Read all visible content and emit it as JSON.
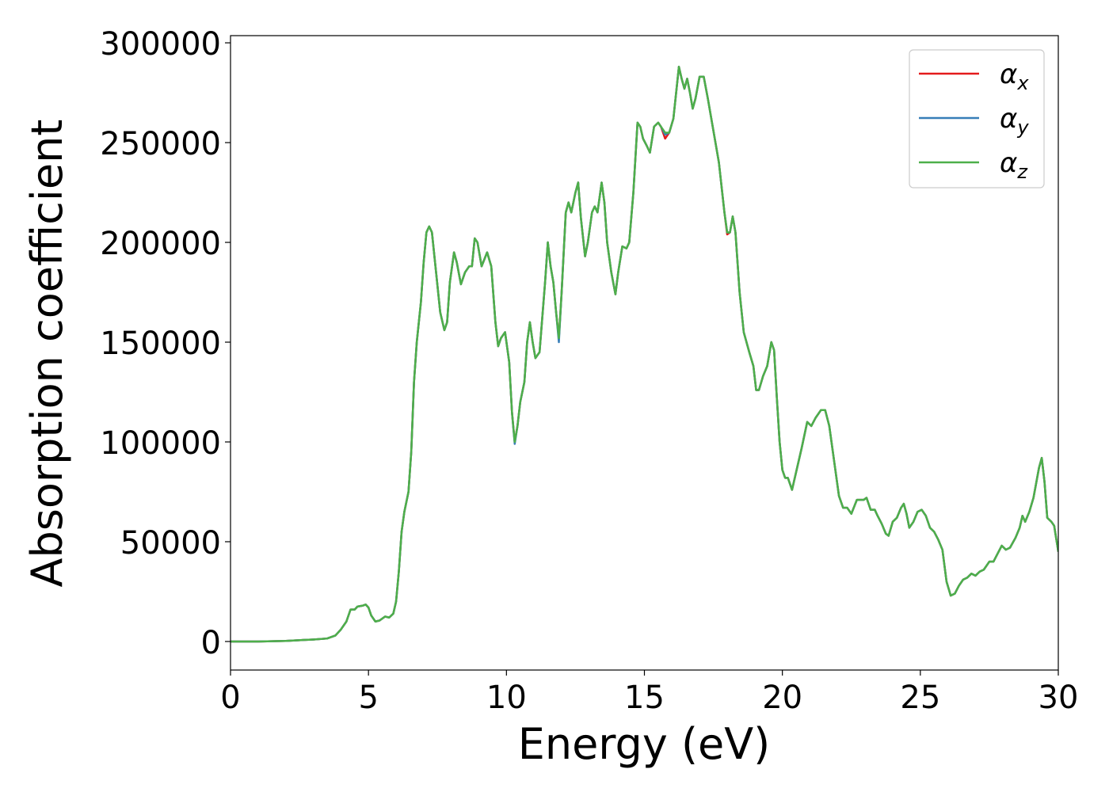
{
  "chart_data": {
    "type": "line",
    "xlabel": "Energy (eV)",
    "ylabel": "Absorption coefficient",
    "xlim": [
      0,
      30
    ],
    "xticks": [
      0,
      5,
      10,
      15,
      20,
      25,
      30
    ],
    "ylim": [
      -14300,
      303600
    ],
    "yticks": [
      0,
      50000,
      100000,
      150000,
      200000,
      250000,
      300000
    ],
    "legend": "upper right",
    "x": [
      0,
      1,
      2,
      3,
      3.5,
      3.8,
      4,
      4.2,
      4.35,
      4.5,
      4.6,
      4.8,
      4.9,
      5,
      5.1,
      5.25,
      5.4,
      5.6,
      5.75,
      5.9,
      6,
      6.1,
      6.2,
      6.3,
      6.45,
      6.55,
      6.65,
      6.75,
      6.9,
      7,
      7.1,
      7.2,
      7.3,
      7.45,
      7.6,
      7.75,
      7.85,
      7.95,
      8.1,
      8.2,
      8.35,
      8.5,
      8.65,
      8.75,
      8.85,
      8.95,
      9.1,
      9.3,
      9.45,
      9.6,
      9.7,
      9.8,
      9.95,
      10.1,
      10.2,
      10.3,
      10.4,
      10.5,
      10.65,
      10.75,
      10.85,
      10.95,
      11.05,
      11.2,
      11.4,
      11.5,
      11.6,
      11.7,
      11.8,
      11.9,
      12,
      12.15,
      12.25,
      12.35,
      12.5,
      12.6,
      12.7,
      12.85,
      12.95,
      13.1,
      13.2,
      13.3,
      13.45,
      13.55,
      13.65,
      13.8,
      13.95,
      14.05,
      14.2,
      14.35,
      14.45,
      14.6,
      14.75,
      14.85,
      14.95,
      15.1,
      15.2,
      15.35,
      15.5,
      15.6,
      15.75,
      15.9,
      16.05,
      16.25,
      16.35,
      16.45,
      16.55,
      16.65,
      16.75,
      16.85,
      17,
      17.15,
      17.3,
      17.45,
      17.6,
      17.7,
      17.9,
      18,
      18.1,
      18.2,
      18.3,
      18.45,
      18.6,
      18.8,
      18.95,
      19.05,
      19.15,
      19.3,
      19.45,
      19.6,
      19.7,
      19.8,
      19.9,
      20,
      20.1,
      20.2,
      20.35,
      20.5,
      20.7,
      20.9,
      21.05,
      21.2,
      21.4,
      21.55,
      21.7,
      21.9,
      22.05,
      22.2,
      22.35,
      22.5,
      22.7,
      22.85,
      22.95,
      23.05,
      23.2,
      23.35,
      23.45,
      23.6,
      23.75,
      23.85,
      24,
      24.15,
      24.3,
      24.4,
      24.5,
      24.6,
      24.75,
      24.9,
      25.05,
      25.2,
      25.35,
      25.5,
      25.65,
      25.8,
      25.95,
      26.1,
      26.25,
      26.4,
      26.55,
      26.7,
      26.85,
      27,
      27.15,
      27.3,
      27.5,
      27.65,
      27.8,
      27.95,
      28.1,
      28.25,
      28.45,
      28.6,
      28.7,
      28.8,
      28.95,
      29.1,
      29.3,
      29.4,
      29.5,
      29.6,
      29.75,
      29.85,
      30
    ],
    "series": [
      {
        "name": "αx",
        "color": "#e41a1c",
        "values": [
          0,
          0,
          300,
          1000,
          1500,
          3000,
          6000,
          10000,
          16000,
          16000,
          17500,
          18000,
          18500,
          17000,
          13000,
          10000,
          10500,
          12500,
          12000,
          14000,
          20000,
          35000,
          55000,
          65000,
          75000,
          95000,
          130000,
          150000,
          170000,
          190000,
          205000,
          208000,
          205000,
          185000,
          165000,
          156000,
          160000,
          180000,
          195000,
          190000,
          179000,
          185000,
          188000,
          188000,
          202000,
          200000,
          188000,
          195000,
          188000,
          160000,
          148000,
          152000,
          155000,
          140000,
          115000,
          100000,
          108000,
          120000,
          130000,
          150000,
          160000,
          150000,
          142000,
          145000,
          180000,
          200000,
          188000,
          180000,
          165000,
          152000,
          175000,
          215000,
          220000,
          215000,
          225000,
          230000,
          212000,
          193000,
          200000,
          215000,
          218000,
          215000,
          230000,
          220000,
          200000,
          185000,
          174000,
          185000,
          198000,
          197000,
          200000,
          225000,
          260000,
          258000,
          252000,
          248000,
          245000,
          258000,
          260000,
          258000,
          252000,
          255000,
          262000,
          288000,
          282000,
          277000,
          282000,
          275000,
          267000,
          272000,
          283000,
          283000,
          272000,
          260000,
          248000,
          240000,
          215000,
          204000,
          205000,
          213000,
          205000,
          175000,
          155000,
          145000,
          138000,
          126000,
          126000,
          133000,
          138000,
          150000,
          146000,
          122000,
          100000,
          86000,
          82000,
          82000,
          76000,
          85000,
          97000,
          110000,
          108000,
          112000,
          116000,
          116000,
          108000,
          88000,
          73000,
          67000,
          67000,
          64000,
          71000,
          71000,
          71000,
          72000,
          66000,
          66000,
          63000,
          59000,
          54000,
          53000,
          60000,
          62000,
          67000,
          69000,
          64000,
          57000,
          60000,
          65000,
          66000,
          63000,
          57000,
          55000,
          51000,
          46000,
          30000,
          23000,
          24000,
          28000,
          31000,
          32000,
          34000,
          33000,
          35000,
          36000,
          40000,
          40000,
          44000,
          48000,
          46000,
          47000,
          52000,
          57000,
          63000,
          60000,
          65000,
          72000,
          87000,
          92000,
          80000,
          62000,
          60000,
          58000,
          45000
        ]
      },
      {
        "name": "αy",
        "color": "#377eb8",
        "values": [
          0,
          0,
          300,
          1000,
          1500,
          3000,
          6000,
          10000,
          16000,
          16000,
          17500,
          18000,
          18500,
          17000,
          13000,
          10000,
          10500,
          12500,
          12000,
          14000,
          20000,
          35000,
          55000,
          65000,
          75000,
          95000,
          130000,
          150000,
          170000,
          190000,
          205000,
          208000,
          205000,
          185000,
          165000,
          156000,
          160000,
          180000,
          195000,
          190000,
          179000,
          185000,
          188000,
          188000,
          202000,
          200000,
          188000,
          195000,
          188000,
          160000,
          148000,
          152000,
          155000,
          140000,
          115000,
          99000,
          108000,
          120000,
          130000,
          150000,
          160000,
          150000,
          142000,
          145000,
          180000,
          200000,
          188000,
          180000,
          165000,
          150000,
          175000,
          215000,
          220000,
          215000,
          225000,
          230000,
          212000,
          193000,
          200000,
          215000,
          218000,
          215000,
          230000,
          220000,
          200000,
          185000,
          174000,
          185000,
          198000,
          197000,
          200000,
          225000,
          260000,
          258000,
          252000,
          248000,
          245000,
          258000,
          260000,
          258000,
          254000,
          255000,
          262000,
          288000,
          282000,
          277000,
          282000,
          275000,
          267000,
          272000,
          283000,
          283000,
          272000,
          260000,
          248000,
          240000,
          215000,
          205000,
          205000,
          213000,
          205000,
          175000,
          155000,
          145000,
          138000,
          126000,
          126000,
          133000,
          138000,
          150000,
          146000,
          122000,
          100000,
          86000,
          82000,
          82000,
          76000,
          85000,
          97000,
          110000,
          108000,
          112000,
          116000,
          116000,
          108000,
          88000,
          73000,
          67000,
          67000,
          64000,
          71000,
          71000,
          71000,
          72000,
          66000,
          66000,
          63000,
          59000,
          54000,
          53000,
          60000,
          62000,
          67000,
          69000,
          64000,
          57000,
          60000,
          65000,
          66000,
          63000,
          57000,
          55000,
          51000,
          46000,
          30000,
          23000,
          24000,
          28000,
          31000,
          32000,
          34000,
          33000,
          35000,
          36000,
          40000,
          40000,
          44000,
          48000,
          46000,
          47000,
          52000,
          57000,
          63000,
          60000,
          65000,
          72000,
          87000,
          92000,
          80000,
          62000,
          60000,
          58000,
          45000
        ]
      },
      {
        "name": "αz",
        "color": "#4daf4a",
        "values": [
          0,
          0,
          300,
          1000,
          1500,
          3000,
          6000,
          10000,
          16000,
          16000,
          17500,
          18000,
          18500,
          17000,
          13000,
          10000,
          10500,
          12500,
          12000,
          14000,
          20000,
          35000,
          55000,
          65000,
          75000,
          95000,
          130000,
          150000,
          170000,
          190000,
          205000,
          208000,
          205000,
          185000,
          165000,
          156000,
          160000,
          180000,
          195000,
          190000,
          179000,
          185000,
          188000,
          188000,
          202000,
          200000,
          188000,
          195000,
          188000,
          160000,
          148000,
          152000,
          155000,
          140000,
          115000,
          100000,
          108000,
          120000,
          130000,
          150000,
          160000,
          150000,
          142000,
          145000,
          180000,
          200000,
          188000,
          180000,
          165000,
          152000,
          175000,
          215000,
          220000,
          215000,
          225000,
          230000,
          212000,
          193000,
          200000,
          215000,
          218000,
          215000,
          230000,
          220000,
          200000,
          185000,
          174000,
          185000,
          198000,
          197000,
          200000,
          225000,
          260000,
          258000,
          252000,
          248000,
          245000,
          258000,
          260000,
          258000,
          255000,
          255000,
          262000,
          288000,
          282000,
          277000,
          282000,
          275000,
          267000,
          272000,
          283000,
          283000,
          272000,
          260000,
          248000,
          240000,
          215000,
          205000,
          205000,
          213000,
          205000,
          175000,
          155000,
          145000,
          138000,
          126000,
          126000,
          133000,
          138000,
          150000,
          146000,
          122000,
          100000,
          86000,
          82000,
          82000,
          76000,
          85000,
          97000,
          110000,
          108000,
          112000,
          116000,
          116000,
          108000,
          88000,
          73000,
          67000,
          67000,
          64000,
          71000,
          71000,
          71000,
          72000,
          66000,
          66000,
          63000,
          59000,
          54000,
          53000,
          60000,
          62000,
          67000,
          69000,
          64000,
          57000,
          60000,
          65000,
          66000,
          63000,
          57000,
          55000,
          51000,
          46000,
          30000,
          23000,
          24000,
          28000,
          31000,
          32000,
          34000,
          33000,
          35000,
          36000,
          40000,
          40000,
          44000,
          48000,
          46000,
          47000,
          52000,
          57000,
          63000,
          60000,
          65000,
          72000,
          87000,
          92000,
          80000,
          62000,
          60000,
          58000,
          45000
        ]
      }
    ]
  }
}
